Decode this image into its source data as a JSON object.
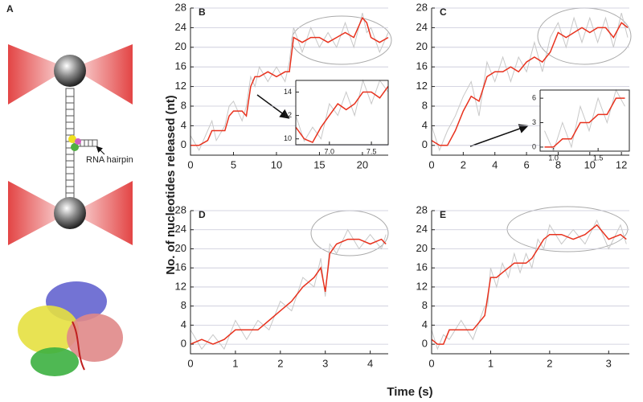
{
  "panel_a": {
    "label": "A",
    "annotation": "RNA hairpin"
  },
  "shared_axes": {
    "y_label": "No. of nucleotides released (nt)",
    "x_label": "Time (s)"
  },
  "chart_data": [
    {
      "type": "line",
      "label": "B",
      "x": [
        0,
        1,
        2,
        2.5,
        3,
        4,
        4.5,
        5,
        6,
        6.5,
        7,
        7.5,
        8,
        9,
        10,
        11,
        11.5,
        12,
        13,
        14,
        15,
        16,
        17,
        18,
        19,
        20,
        20.5,
        21,
        22,
        23
      ],
      "series": [
        {
          "color": "#c8c8c8",
          "values": [
            2,
            -1,
            3,
            5,
            1,
            4,
            8,
            9,
            5,
            8,
            14,
            12,
            16,
            13,
            16,
            13,
            17,
            24,
            19,
            24,
            20,
            23,
            20,
            25,
            20,
            27,
            23,
            24,
            19,
            23
          ]
        },
        {
          "color": "#e8321e",
          "values": [
            0,
            0,
            1,
            3,
            3,
            3,
            6,
            7,
            7,
            6,
            12,
            14,
            14,
            15,
            14,
            15,
            15,
            22,
            21,
            22,
            22,
            21,
            22,
            23,
            22,
            26,
            25,
            22,
            21,
            22
          ]
        }
      ],
      "xlim": [
        0,
        23
      ],
      "xticks": [
        0,
        5,
        10,
        15,
        20
      ],
      "ylim": [
        -2,
        28
      ],
      "yticks": [
        0,
        4,
        8,
        12,
        16,
        20,
        24,
        28
      ],
      "grid": true
    },
    {
      "type": "line",
      "x": [
        6.6,
        6.7,
        6.8,
        6.9,
        7.0,
        7.1,
        7.2,
        7.3,
        7.4,
        7.5,
        7.6,
        7.7
      ],
      "series": [
        {
          "color": "#c8c8c8",
          "values": [
            12,
            9.8,
            11,
            10,
            13,
            12,
            14,
            12,
            15,
            13,
            15,
            14
          ]
        },
        {
          "color": "#e8321e",
          "values": [
            11,
            10,
            9.7,
            11,
            12,
            13,
            12.5,
            13,
            14,
            14,
            13.5,
            14.5
          ]
        }
      ],
      "xlim": [
        6.6,
        7.7
      ],
      "xticks": [
        {
          "value": 7,
          "label": "7.0"
        },
        7.5
      ],
      "ylim": [
        9.5,
        15
      ],
      "yticks": [
        10,
        12,
        14
      ],
      "grid": false
    },
    {
      "type": "line",
      "label": "C",
      "x": [
        0,
        0.5,
        1,
        1.5,
        2,
        2.5,
        3,
        3.5,
        4,
        4.5,
        5,
        5.5,
        6,
        6.5,
        7,
        7.5,
        8,
        8.5,
        9,
        9.5,
        10,
        10.5,
        11,
        11.5,
        12,
        12.4
      ],
      "series": [
        {
          "color": "#c8c8c8",
          "values": [
            4,
            -1,
            3,
            6,
            10,
            13,
            6,
            17,
            13,
            18,
            13,
            18,
            15,
            21,
            15,
            22,
            25,
            20,
            26,
            21,
            26,
            21,
            26,
            20,
            27,
            22
          ]
        },
        {
          "color": "#e8321e",
          "values": [
            1,
            0,
            0,
            3,
            7,
            10,
            9,
            14,
            15,
            15,
            16,
            15,
            17,
            18,
            17,
            19,
            23,
            22,
            23,
            24,
            23,
            24,
            24,
            22,
            25,
            24
          ]
        }
      ],
      "xlim": [
        0,
        12.5
      ],
      "xticks": [
        0,
        2,
        4,
        6,
        8,
        10,
        12
      ],
      "ylim": [
        -2,
        28
      ],
      "yticks": [
        0,
        4,
        8,
        12,
        16,
        20,
        24,
        28
      ],
      "grid": true
    },
    {
      "type": "line",
      "x": [
        0.9,
        1.0,
        1.1,
        1.2,
        1.3,
        1.4,
        1.5,
        1.6,
        1.7,
        1.8
      ],
      "series": [
        {
          "color": "#c8c8c8",
          "values": [
            2,
            -0.5,
            3,
            0,
            5,
            2,
            6,
            3,
            7,
            5
          ]
        },
        {
          "color": "#e8321e",
          "values": [
            0,
            0,
            1,
            1,
            3,
            3,
            4,
            4,
            6,
            6
          ]
        }
      ],
      "xlim": [
        0.85,
        1.85
      ],
      "xticks": [
        {
          "value": 1,
          "label": "1.0"
        },
        1.5
      ],
      "ylim": [
        -0.5,
        7
      ],
      "yticks": [
        0,
        3,
        6
      ],
      "grid": false
    },
    {
      "type": "line",
      "label": "D",
      "x": [
        0,
        0.25,
        0.5,
        0.75,
        1,
        1.25,
        1.5,
        1.75,
        2,
        2.25,
        2.5,
        2.75,
        2.9,
        3,
        3.1,
        3.25,
        3.5,
        3.75,
        4,
        4.25,
        4.35
      ],
      "series": [
        {
          "color": "#c8c8c8",
          "values": [
            3,
            -1,
            2,
            -1,
            5,
            1,
            5,
            3,
            9,
            7,
            14,
            12,
            18,
            10,
            21,
            19,
            24,
            20,
            23,
            20,
            23
          ]
        },
        {
          "color": "#e8321e",
          "values": [
            0,
            1,
            0,
            1,
            3,
            3,
            3,
            5,
            7,
            9,
            12,
            14,
            16,
            11,
            19,
            21,
            22,
            22,
            21,
            22,
            21
          ]
        }
      ],
      "xlim": [
        0,
        4.4
      ],
      "xticks": [
        0,
        1,
        2,
        3,
        4
      ],
      "ylim": [
        -2,
        28
      ],
      "yticks": [
        0,
        4,
        8,
        12,
        16,
        20,
        24,
        28
      ],
      "grid": true
    },
    {
      "type": "line",
      "label": "E",
      "x": [
        0,
        0.1,
        0.2,
        0.3,
        0.5,
        0.7,
        0.9,
        0.95,
        1,
        1.1,
        1.2,
        1.3,
        1.4,
        1.5,
        1.6,
        1.7,
        1.8,
        1.9,
        2,
        2.2,
        2.4,
        2.6,
        2.8,
        3,
        3.2,
        3.3
      ],
      "series": [
        {
          "color": "#c8c8c8",
          "values": [
            3,
            -1,
            2,
            1,
            5,
            1,
            8,
            8,
            16,
            12,
            17,
            14,
            19,
            15,
            19,
            16,
            22,
            20,
            25,
            21,
            24,
            21,
            26,
            20,
            25,
            21
          ]
        },
        {
          "color": "#e8321e",
          "values": [
            1,
            0,
            0,
            3,
            3,
            3,
            6,
            10,
            14,
            14,
            15,
            16,
            17,
            17,
            17,
            18,
            20,
            22,
            23,
            23,
            22,
            23,
            25,
            22,
            23,
            22
          ]
        }
      ],
      "xlim": [
        0,
        3.35
      ],
      "xticks": [
        0,
        1,
        2,
        3
      ],
      "ylim": [
        -2,
        28
      ],
      "yticks": [
        0,
        4,
        8,
        12,
        16,
        20,
        24,
        28
      ],
      "grid": true
    }
  ]
}
